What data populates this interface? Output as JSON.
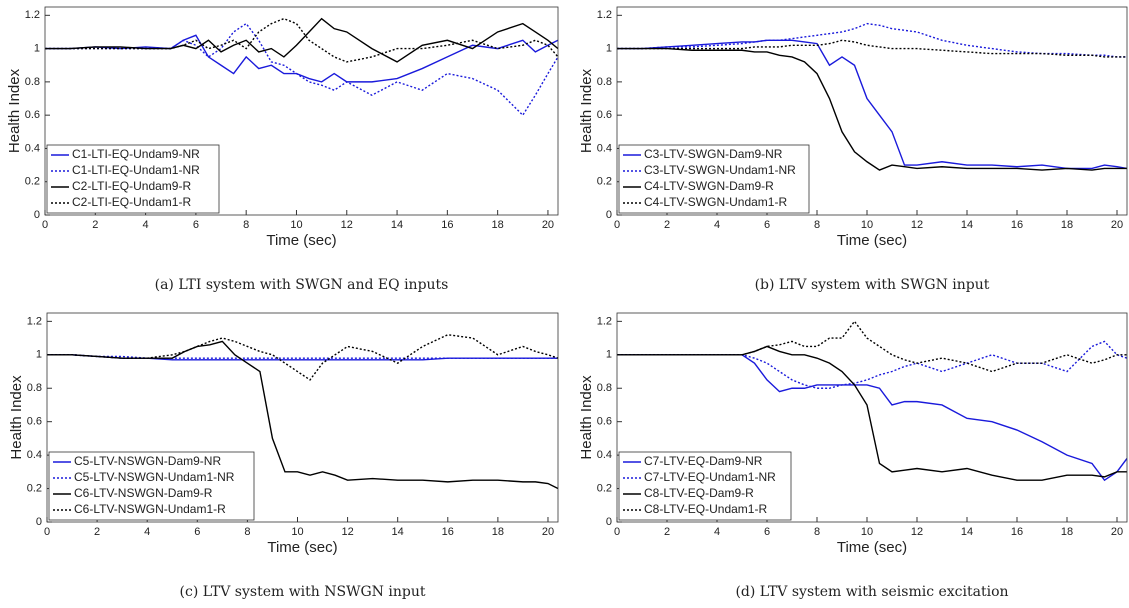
{
  "chart_data": [
    {
      "type": "line",
      "caption": "(a) LTI system with SWGN and EQ inputs",
      "xlabel": "Time (sec)",
      "ylabel": "Health Index",
      "x": [
        0,
        1,
        2,
        3,
        4,
        5,
        5.5,
        6,
        6.5,
        7,
        7.5,
        8,
        8.5,
        9,
        9.5,
        10,
        10.5,
        11,
        11.5,
        12,
        13,
        14,
        15,
        16,
        17,
        18,
        19,
        19.5,
        20,
        20.4
      ],
      "xlim": [
        0,
        20.4
      ],
      "ylim": [
        0,
        1.25
      ],
      "xticks": [
        0,
        2,
        4,
        6,
        8,
        10,
        12,
        14,
        16,
        18,
        20
      ],
      "yticks": [
        0,
        0.2,
        0.4,
        0.6,
        0.8,
        1,
        1.2
      ],
      "legend": "lower left",
      "series": [
        {
          "name": "C1-LTI-EQ-Undam9-NR",
          "color": "#1a1adb",
          "line_style": "solid",
          "values": [
            1,
            1,
            1.01,
            1,
            1.01,
            1,
            1.05,
            1.08,
            0.95,
            0.9,
            0.85,
            0.95,
            0.88,
            0.9,
            0.85,
            0.85,
            0.82,
            0.8,
            0.85,
            0.8,
            0.8,
            0.82,
            0.88,
            0.95,
            1.02,
            1,
            1.05,
            0.98,
            1.02,
            1.05
          ]
        },
        {
          "name": "C1-LTI-EQ-Undam1-NR",
          "color": "#1a1adb",
          "line_style": "dotted",
          "values": [
            1,
            1,
            1,
            1,
            1,
            1,
            1.05,
            1.02,
            0.95,
            1,
            1.1,
            1.15,
            1.05,
            0.92,
            0.9,
            0.85,
            0.8,
            0.78,
            0.75,
            0.8,
            0.72,
            0.8,
            0.75,
            0.85,
            0.82,
            0.75,
            0.6,
            0.72,
            0.85,
            0.95
          ]
        },
        {
          "name": "C2-LTI-EQ-Undam9-R",
          "color": "#000000",
          "line_style": "solid",
          "values": [
            1,
            1,
            1.01,
            1.01,
            1,
            1,
            1.02,
            1,
            1.05,
            0.98,
            1.02,
            1.05,
            0.98,
            1,
            0.95,
            1.02,
            1.1,
            1.18,
            1.12,
            1.1,
            1,
            0.92,
            1.02,
            1.05,
            1,
            1.1,
            1.15,
            1.1,
            1.05,
            1
          ]
        },
        {
          "name": "C2-LTI-EQ-Undam1-R",
          "color": "#000000",
          "line_style": "dotted",
          "values": [
            1,
            1,
            1,
            1,
            1,
            1,
            1.02,
            1.05,
            1,
            1.02,
            1.05,
            1,
            1.1,
            1.15,
            1.18,
            1.15,
            1.05,
            1,
            0.95,
            0.92,
            0.95,
            1,
            1,
            1.02,
            1.05,
            1,
            1.02,
            1.05,
            1.02,
            0.95
          ]
        }
      ]
    },
    {
      "type": "line",
      "caption": "(b) LTV system with SWGN input",
      "xlabel": "Time (sec)",
      "ylabel": "Health Index",
      "x": [
        0,
        1,
        2,
        3,
        4,
        5,
        5.5,
        6,
        6.5,
        7,
        7.5,
        8,
        8.5,
        9,
        9.5,
        10,
        10.5,
        11,
        11.5,
        12,
        13,
        14,
        15,
        16,
        17,
        18,
        19,
        19.5,
        20,
        20.4
      ],
      "xlim": [
        0,
        20.4
      ],
      "ylim": [
        0,
        1.25
      ],
      "xticks": [
        0,
        2,
        4,
        6,
        8,
        10,
        12,
        14,
        16,
        18,
        20
      ],
      "yticks": [
        0,
        0.2,
        0.4,
        0.6,
        0.8,
        1,
        1.2
      ],
      "legend": "lower left",
      "series": [
        {
          "name": "C3-LTV-SWGN-Dam9-NR",
          "color": "#1a1adb",
          "line_style": "solid",
          "values": [
            1,
            1,
            1.01,
            1.02,
            1.03,
            1.04,
            1.04,
            1.05,
            1.05,
            1.05,
            1.04,
            1.03,
            0.9,
            0.95,
            0.9,
            0.7,
            0.6,
            0.5,
            0.3,
            0.3,
            0.32,
            0.3,
            0.3,
            0.29,
            0.3,
            0.28,
            0.28,
            0.3,
            0.29,
            0.28
          ]
        },
        {
          "name": "C3-LTV-SWGN-Undam1-NR",
          "color": "#1a1adb",
          "line_style": "dotted",
          "values": [
            1,
            1,
            1.01,
            1.01,
            1.02,
            1.03,
            1.04,
            1.05,
            1.05,
            1.06,
            1.07,
            1.08,
            1.09,
            1.1,
            1.12,
            1.15,
            1.14,
            1.12,
            1.11,
            1.1,
            1.05,
            1.02,
            1,
            0.98,
            0.97,
            0.97,
            0.96,
            0.96,
            0.95,
            0.95
          ]
        },
        {
          "name": "C4-LTV-SWGN-Dam9-R",
          "color": "#000000",
          "line_style": "solid",
          "values": [
            1,
            1,
            1,
            0.99,
            0.99,
            0.99,
            0.98,
            0.98,
            0.96,
            0.95,
            0.92,
            0.85,
            0.7,
            0.5,
            0.38,
            0.32,
            0.27,
            0.3,
            0.29,
            0.28,
            0.29,
            0.28,
            0.28,
            0.28,
            0.27,
            0.28,
            0.27,
            0.28,
            0.28,
            0.28
          ]
        },
        {
          "name": "C4-LTV-SWGN-Undam1-R",
          "color": "#000000",
          "line_style": "dotted",
          "values": [
            1,
            1,
            1,
            1,
            1,
            1,
            1.01,
            1.01,
            1.01,
            1.02,
            1.02,
            1.02,
            1.03,
            1.05,
            1.04,
            1.02,
            1.01,
            1,
            1,
            1,
            0.99,
            0.98,
            0.97,
            0.97,
            0.97,
            0.96,
            0.96,
            0.95,
            0.95,
            0.95
          ]
        }
      ]
    },
    {
      "type": "line",
      "caption": "(c) LTV system with NSWGN input",
      "xlabel": "Time (sec)",
      "ylabel": "Health Index",
      "x": [
        0,
        1,
        2,
        3,
        4,
        5,
        5.5,
        6,
        6.5,
        7,
        7.5,
        8,
        8.5,
        9,
        9.5,
        10,
        10.5,
        11,
        11.5,
        12,
        13,
        14,
        15,
        16,
        17,
        18,
        19,
        19.5,
        20,
        20.4
      ],
      "xlim": [
        0,
        20.4
      ],
      "ylim": [
        0,
        1.25
      ],
      "xticks": [
        0,
        2,
        4,
        6,
        8,
        10,
        12,
        14,
        16,
        18,
        20
      ],
      "yticks": [
        0,
        0.2,
        0.4,
        0.6,
        0.8,
        1,
        1.2
      ],
      "legend": "lower left",
      "series": [
        {
          "name": "C5-LTV-NSWGN-Dam9-NR",
          "color": "#1a1adb",
          "line_style": "solid",
          "values": [
            1,
            1,
            0.99,
            0.98,
            0.98,
            0.97,
            0.97,
            0.97,
            0.97,
            0.97,
            0.97,
            0.97,
            0.97,
            0.97,
            0.97,
            0.97,
            0.97,
            0.97,
            0.97,
            0.97,
            0.97,
            0.97,
            0.97,
            0.98,
            0.98,
            0.98,
            0.98,
            0.98,
            0.98,
            0.98
          ]
        },
        {
          "name": "C5-LTV-NSWGN-Undam1-NR",
          "color": "#1a1adb",
          "line_style": "dotted",
          "values": [
            1,
            1,
            0.99,
            0.99,
            0.98,
            0.98,
            0.98,
            0.98,
            0.98,
            0.98,
            0.98,
            0.98,
            0.98,
            0.98,
            0.98,
            0.98,
            0.98,
            0.98,
            0.98,
            0.98,
            0.98,
            0.98,
            0.98,
            0.98,
            0.98,
            0.98,
            0.98,
            0.98,
            0.98,
            0.98
          ]
        },
        {
          "name": "C6-LTV-NSWGN-Dam9-R",
          "color": "#000000",
          "line_style": "solid",
          "values": [
            1,
            1,
            0.99,
            0.98,
            0.98,
            0.98,
            1.02,
            1.05,
            1.06,
            1.08,
            1,
            0.95,
            0.9,
            0.5,
            0.3,
            0.3,
            0.28,
            0.3,
            0.28,
            0.25,
            0.26,
            0.25,
            0.25,
            0.24,
            0.25,
            0.25,
            0.24,
            0.24,
            0.23,
            0.2
          ]
        },
        {
          "name": "C6-LTV-NSWGN-Undam1-R",
          "color": "#000000",
          "line_style": "dotted",
          "values": [
            1,
            1,
            0.99,
            0.98,
            0.98,
            1,
            1.02,
            1.05,
            1.08,
            1.1,
            1.08,
            1.05,
            1.02,
            1,
            0.95,
            0.9,
            0.85,
            0.95,
            1,
            1.05,
            1.02,
            0.95,
            1.05,
            1.12,
            1.1,
            1,
            1.05,
            1.02,
            1,
            0.98
          ]
        }
      ]
    },
    {
      "type": "line",
      "caption": "(d) LTV system with seismic excitation",
      "xlabel": "Time (sec)",
      "ylabel": "Health Index",
      "x": [
        0,
        1,
        2,
        3,
        4,
        5,
        5.5,
        6,
        6.5,
        7,
        7.5,
        8,
        8.5,
        9,
        9.5,
        10,
        10.5,
        11,
        11.5,
        12,
        13,
        14,
        15,
        16,
        17,
        18,
        19,
        19.5,
        20,
        20.4
      ],
      "xlim": [
        0,
        20.4
      ],
      "ylim": [
        0,
        1.25
      ],
      "xticks": [
        0,
        2,
        4,
        6,
        8,
        10,
        12,
        14,
        16,
        18,
        20
      ],
      "yticks": [
        0,
        0.2,
        0.4,
        0.6,
        0.8,
        1,
        1.2
      ],
      "legend": "lower left",
      "series": [
        {
          "name": "C7-LTV-EQ-Dam9-NR",
          "color": "#1a1adb",
          "line_style": "solid",
          "values": [
            1,
            1,
            1,
            1,
            1,
            1,
            0.95,
            0.85,
            0.78,
            0.8,
            0.8,
            0.82,
            0.82,
            0.82,
            0.82,
            0.82,
            0.8,
            0.7,
            0.72,
            0.72,
            0.7,
            0.62,
            0.6,
            0.55,
            0.48,
            0.4,
            0.35,
            0.25,
            0.3,
            0.38
          ]
        },
        {
          "name": "C7-LTV-EQ-Undam1-NR",
          "color": "#1a1adb",
          "line_style": "dotted",
          "values": [
            1,
            1,
            1,
            1,
            1,
            1,
            0.98,
            0.95,
            0.9,
            0.85,
            0.82,
            0.8,
            0.8,
            0.82,
            0.83,
            0.85,
            0.88,
            0.9,
            0.93,
            0.95,
            0.9,
            0.95,
            1,
            0.95,
            0.95,
            0.9,
            1.05,
            1.08,
            1,
            0.98
          ]
        },
        {
          "name": "C8-LTV-EQ-Dam9-R",
          "color": "#000000",
          "line_style": "solid",
          "values": [
            1,
            1,
            1,
            1,
            1,
            1,
            1.02,
            1.05,
            1.02,
            1,
            1,
            0.98,
            0.95,
            0.9,
            0.82,
            0.7,
            0.35,
            0.3,
            0.31,
            0.32,
            0.3,
            0.32,
            0.28,
            0.25,
            0.25,
            0.28,
            0.28,
            0.27,
            0.3,
            0.3
          ]
        },
        {
          "name": "C8-LTV-EQ-Undam1-R",
          "color": "#000000",
          "line_style": "dotted",
          "values": [
            1,
            1,
            1,
            1,
            1,
            1,
            1.02,
            1.05,
            1.06,
            1.08,
            1.05,
            1.05,
            1.1,
            1.1,
            1.2,
            1.1,
            1.05,
            1,
            0.97,
            0.95,
            0.98,
            0.95,
            0.9,
            0.95,
            0.95,
            1,
            0.95,
            0.97,
            1,
            1
          ]
        }
      ]
    }
  ]
}
